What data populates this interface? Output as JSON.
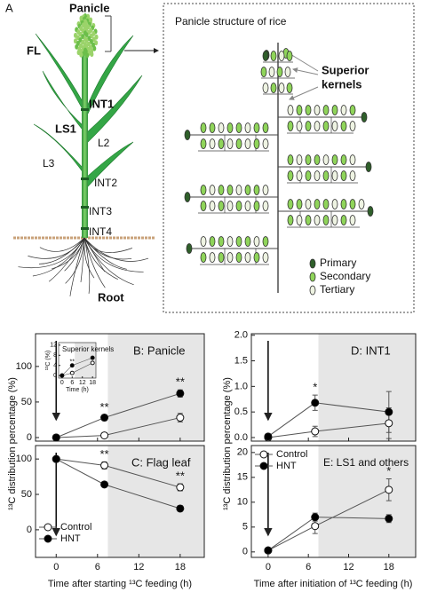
{
  "diagram": {
    "panel_label": "A",
    "plant": {
      "panicle": "Panicle",
      "labels": [
        "FL",
        "INT1",
        "LS1",
        "L2",
        "L3",
        "INT2",
        "INT3",
        "INT4"
      ],
      "root": "Root"
    },
    "structure": {
      "title": "Panicle structure of rice",
      "callout": [
        "Superior",
        "kernels"
      ],
      "legend": [
        {
          "name": "Primary",
          "color": "#2f5f2a"
        },
        {
          "name": "Secondary",
          "color": "#8fd45a"
        },
        {
          "name": "Tertiary",
          "color": "#eef3e2"
        }
      ]
    }
  },
  "shared_labels": {
    "left_y": "¹³C distribution percentage (%)",
    "left_x": "Time after starting ¹³C feeding (h)",
    "right_y": "¹³C distribution percentage (%)",
    "right_x": "Time after initiation of ¹³C feeding (h)"
  },
  "chart_data": [
    {
      "type": "line",
      "title": "B: Panicle",
      "x": [
        0,
        7,
        18
      ],
      "xlim": [
        -3,
        21.5
      ],
      "xticks": [
        0,
        6,
        12,
        18
      ],
      "ylim": [
        -5,
        146
      ],
      "yticks": [
        0,
        50,
        100
      ],
      "shade_x": [
        7.5,
        21.5
      ],
      "series": [
        {
          "name": "Control",
          "color": "#ffffff",
          "values": [
            0,
            3,
            28
          ],
          "errors": [
            1,
            2,
            6
          ]
        },
        {
          "name": "HNT",
          "color": "#000000",
          "values": [
            0,
            28,
            62
          ],
          "errors": [
            1,
            4,
            5
          ]
        }
      ],
      "annotations": [
        {
          "text": "**",
          "x": 7
        },
        {
          "text": "**",
          "x": 18
        }
      ]
    },
    {
      "type": "line",
      "title": "C: Flag leaf",
      "x": [
        0,
        7,
        18
      ],
      "xlim": [
        -3,
        21.5
      ],
      "xticks": [
        0,
        6,
        12,
        18
      ],
      "ylim": [
        -39,
        119
      ],
      "yticks": [
        0,
        50,
        100
      ],
      "shade_x": [
        7.5,
        21.5
      ],
      "legend": "lower left",
      "series": [
        {
          "name": "Control",
          "color": "#ffffff",
          "values": [
            100,
            91,
            60
          ],
          "errors": [
            3,
            5,
            5
          ]
        },
        {
          "name": "HNT",
          "color": "#000000",
          "values": [
            100,
            64,
            30
          ],
          "errors": [
            3,
            3,
            4
          ]
        }
      ],
      "annotations": [
        {
          "text": "**",
          "x": 7
        },
        {
          "text": "**",
          "x": 18
        }
      ]
    },
    {
      "type": "line",
      "title": "D: INT1",
      "x": [
        0,
        7,
        18
      ],
      "xlim": [
        -2.5,
        22
      ],
      "xticks": [
        0,
        6,
        12,
        18
      ],
      "ylim": [
        -0.07,
        2.03
      ],
      "yticks": [
        {
          "value": 0,
          "label": "0.0"
        },
        0.5,
        {
          "value": 1,
          "label": "1.0"
        },
        1.5,
        {
          "value": 2,
          "label": "2.0"
        }
      ],
      "shade_x": [
        7.5,
        22
      ],
      "series": [
        {
          "name": "Control",
          "color": "#ffffff",
          "values": [
            0,
            0.12,
            0.28
          ],
          "errors": [
            0.03,
            0.1,
            0.3
          ]
        },
        {
          "name": "HNT",
          "color": "#000000",
          "values": [
            0.02,
            0.68,
            0.5
          ],
          "errors": [
            0.03,
            0.15,
            0.4
          ]
        }
      ],
      "annotations": [
        {
          "text": "*",
          "x": 7
        }
      ]
    },
    {
      "type": "line",
      "title": "E: LS1 and others",
      "x": [
        0,
        7,
        18
      ],
      "xlim": [
        -2.5,
        22
      ],
      "xticks": [
        0,
        6,
        12,
        18
      ],
      "ylim": [
        -1.1,
        21.4
      ],
      "yticks": [
        0,
        5,
        10,
        15,
        20
      ],
      "shade_x": [
        7.5,
        22
      ],
      "legend": "upper left",
      "series": [
        {
          "name": "Control",
          "color": "#ffffff",
          "values": [
            0.3,
            5.2,
            12.5
          ],
          "errors": [
            0.2,
            1.5,
            2.2
          ]
        },
        {
          "name": "HNT",
          "color": "#000000",
          "values": [
            0.3,
            7,
            6.7
          ],
          "errors": [
            0.2,
            0.8,
            0.8
          ]
        }
      ],
      "annotations": [
        {
          "text": "*",
          "x": 18
        }
      ]
    },
    {
      "type": "line",
      "title": "Superior kernels",
      "xlabel": "Time (h)",
      "ylabel": "¹³C (%)",
      "x": [
        0,
        6,
        18
      ],
      "xlim": [
        -2,
        20
      ],
      "xticks": [
        0,
        6,
        12,
        18
      ],
      "ylim": [
        -1,
        13
      ],
      "yticks": [
        0,
        4,
        8,
        12
      ],
      "shade_x": [
        7.5,
        20
      ],
      "series": [
        {
          "name": "Control",
          "color": "#ffffff",
          "values": [
            0,
            1,
            5
          ]
        },
        {
          "name": "HNT",
          "color": "#000000",
          "values": [
            0,
            4,
            7
          ]
        }
      ],
      "annotations": [
        {
          "text": "**",
          "x": 6
        }
      ]
    }
  ]
}
